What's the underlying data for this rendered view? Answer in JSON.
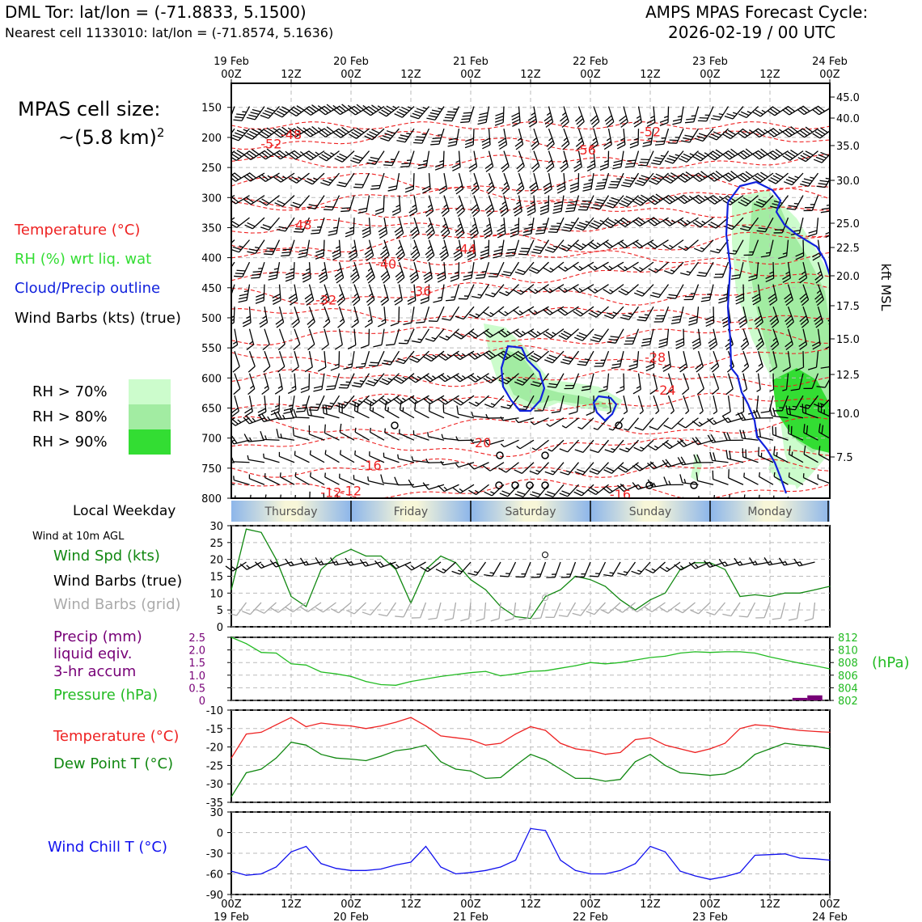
{
  "header": {
    "station": "DML Tor: lat/lon = (-71.8833, 5.1500)",
    "nearest": "Nearest cell 1133010: lat/lon = (-71.8574, 5.1636)",
    "cycle_title": "AMPS MPAS Forecast Cycle:",
    "cycle_time": "2026-02-19 / 00 UTC"
  },
  "cell_size": {
    "label": "MPAS cell size:",
    "value": "~(5.8 km)",
    "sup": "2"
  },
  "legend": {
    "temperature": "Temperature (°C)",
    "rh": "RH (%) wrt liq. wat",
    "cloud": "Cloud/Precip outline",
    "wind": "Wind Barbs (kts) (true)",
    "rh70": "RH > 70%",
    "rh80": "RH > 80%",
    "rh90": "RH > 90%",
    "rh_colors": [
      "#ccfccc",
      "#a2eca2",
      "#33dd33"
    ]
  },
  "time_axis": {
    "ticks": [
      "00Z",
      "12Z",
      "00Z",
      "12Z",
      "00Z",
      "12Z",
      "00Z",
      "12Z",
      "00Z",
      "12Z",
      "00Z"
    ],
    "dates": [
      "19 Feb",
      "20 Feb",
      "21 Feb",
      "22 Feb",
      "23 Feb",
      "24 Feb"
    ]
  },
  "weekday": {
    "label": "Local Weekday",
    "days": [
      "Thursday",
      "Friday",
      "Saturday",
      "Sunday",
      "Monday"
    ]
  },
  "panel_labels": {
    "wind_title": "Wind at 10m AGL",
    "wind_spd": "Wind Spd (kts)",
    "wind_barbs_true": "Wind Barbs (true)",
    "wind_barbs_grid": "Wind Barbs (grid)",
    "precip1": "Precip (mm)",
    "precip2": "liquid eqiv.",
    "precip3": "3-hr accum",
    "pressure": "Pressure (hPa)",
    "pressure_unit": "(hPa)",
    "temp": "Temperature (°C)",
    "dew": "Dew Point T (°C)",
    "chill": "Wind Chill T (°C)"
  },
  "colors": {
    "temp": "#ee2222",
    "dew": "#118811",
    "wind": "#118811",
    "pressure": "#22bb22",
    "precip": "#770077",
    "chill": "#1111ee",
    "cloud": "#1122dd",
    "grid_barb": "#aaaaaa"
  },
  "chart_data": [
    {
      "type": "heatmap",
      "name": "cross-section",
      "y_left_ticks": [
        "150",
        "200",
        "250",
        "300",
        "350",
        "400",
        "450",
        "500",
        "550",
        "600",
        "650",
        "700",
        "750",
        "800"
      ],
      "y_right_ticks": [
        "45.0",
        "40.0",
        "35.0",
        "30.0",
        "25.0",
        "22.5",
        "20.0",
        "17.5",
        "15.0",
        "12.5",
        "10.0",
        "7.5"
      ],
      "y_right_label": "kft MSL",
      "temp_labels": [
        {
          "text": "-52",
          "h": 8,
          "p": 210
        },
        {
          "text": "-48",
          "h": 12,
          "p": 195
        },
        {
          "text": "-48",
          "h": 14,
          "p": 345
        },
        {
          "text": "-40",
          "h": 31,
          "p": 410
        },
        {
          "text": "-44",
          "h": 47,
          "p": 385
        },
        {
          "text": "-32",
          "h": 19,
          "p": 470
        },
        {
          "text": "-36",
          "h": 38,
          "p": 455
        },
        {
          "text": "-56",
          "h": 71,
          "p": 220
        },
        {
          "text": "-52",
          "h": 84,
          "p": 190
        },
        {
          "text": "-28",
          "h": 85,
          "p": 565
        },
        {
          "text": "-24",
          "h": 87,
          "p": 620
        },
        {
          "text": "-20",
          "h": 50,
          "p": 707
        },
        {
          "text": "-16",
          "h": 28,
          "p": 745
        },
        {
          "text": "-12",
          "h": 24,
          "p": 787
        },
        {
          "text": "-12",
          "h": 20,
          "p": 790
        },
        {
          "text": "-16",
          "h": 78,
          "p": 793
        }
      ]
    },
    {
      "type": "line",
      "name": "wind-speed",
      "ylim": [
        0,
        30
      ],
      "yticks": [
        "0",
        "5",
        "10",
        "15",
        "20",
        "25",
        "30"
      ],
      "x_hours": [
        0,
        3,
        6,
        9,
        12,
        15,
        18,
        21,
        24,
        27,
        30,
        33,
        36,
        39,
        42,
        45,
        48,
        51,
        54,
        57,
        60,
        63,
        66,
        69,
        72,
        75,
        78,
        81,
        84,
        87,
        90,
        93,
        96,
        99,
        102,
        105,
        108,
        111,
        114,
        117,
        120
      ],
      "series": [
        {
          "values": [
            11,
            29,
            28,
            20,
            9,
            6,
            17,
            21,
            23,
            21,
            21,
            17,
            7,
            17,
            21,
            19,
            14,
            11,
            6,
            3,
            2.5,
            9,
            11,
            15,
            14,
            12,
            8,
            5,
            8,
            10,
            17,
            19,
            19,
            17,
            9,
            9.5,
            9,
            10,
            10,
            11,
            12
          ]
        }
      ]
    },
    {
      "type": "line",
      "name": "pressure",
      "y2lim": [
        802,
        812
      ],
      "y2ticks": [
        "802",
        "804",
        "806",
        "808",
        "810",
        "812"
      ],
      "ylim": [
        0,
        2.5
      ],
      "yticks": [
        "0",
        "0.5",
        "1.0",
        "1.5",
        "2.0",
        "2.5"
      ],
      "x_hours": [
        0,
        3,
        6,
        9,
        12,
        15,
        18,
        21,
        24,
        27,
        30,
        33,
        36,
        39,
        42,
        45,
        48,
        51,
        54,
        57,
        60,
        63,
        66,
        69,
        72,
        75,
        78,
        81,
        84,
        87,
        90,
        93,
        96,
        99,
        102,
        105,
        108,
        111,
        114,
        117,
        120
      ],
      "series": [
        {
          "name": "Pressure",
          "values": [
            812,
            811,
            809.6,
            809.5,
            807.8,
            807.6,
            806.5,
            806.2,
            805.8,
            805,
            804.5,
            804.4,
            805,
            805.4,
            805.8,
            806.1,
            806.4,
            806.6,
            805.9,
            806.2,
            806.6,
            806.7,
            807.1,
            807.5,
            808,
            807.8,
            808,
            808.4,
            808.8,
            809,
            809.5,
            809.7,
            809.6,
            809.7,
            809.7,
            809.5,
            808.9,
            808.4,
            807.9,
            807.5,
            807
          ]
        }
      ],
      "precip": [
        {
          "h": 114,
          "mm": 0.1
        },
        {
          "h": 117,
          "mm": 0.2
        }
      ]
    },
    {
      "type": "line",
      "name": "temperature",
      "ylim": [
        -35,
        -10
      ],
      "yticks": [
        "-10",
        "-15",
        "-20",
        "-25",
        "-30",
        "-35"
      ],
      "x_hours": [
        0,
        3,
        6,
        9,
        12,
        15,
        18,
        21,
        24,
        27,
        30,
        33,
        36,
        39,
        42,
        45,
        48,
        51,
        54,
        57,
        60,
        63,
        66,
        69,
        72,
        75,
        78,
        81,
        84,
        87,
        90,
        93,
        96,
        99,
        102,
        105,
        108,
        111,
        114,
        117,
        120
      ],
      "series": [
        {
          "name": "Temperature",
          "values": [
            -23,
            -16.5,
            -16,
            -14,
            -12,
            -14.5,
            -13.5,
            -14,
            -14.3,
            -15,
            -14.3,
            -13.3,
            -12,
            -14.3,
            -17,
            -17.5,
            -18,
            -19.5,
            -19,
            -16.5,
            -14.5,
            -15.5,
            -19,
            -20.5,
            -21,
            -22,
            -21.5,
            -18,
            -17.5,
            -19.5,
            -20.5,
            -21.5,
            -20.5,
            -19,
            -15,
            -14,
            -14.3,
            -15,
            -15.5,
            -15.8,
            -16
          ]
        },
        {
          "name": "Dew Point",
          "values": [
            -33.5,
            -27,
            -26,
            -23,
            -18.7,
            -19.5,
            -22,
            -23,
            -23.3,
            -23.7,
            -22.5,
            -21,
            -20.5,
            -19.5,
            -24,
            -26,
            -26.5,
            -28.5,
            -28.3,
            -25,
            -22,
            -23.5,
            -26,
            -28.5,
            -28.5,
            -29.3,
            -28.8,
            -24,
            -22,
            -25,
            -27,
            -27.3,
            -27.7,
            -27.3,
            -25.5,
            -22,
            -20.5,
            -19,
            -19.5,
            -19.8,
            -20.5
          ]
        }
      ]
    },
    {
      "type": "line",
      "name": "wind-chill",
      "ylim": [
        -90,
        30
      ],
      "yticks": [
        "30",
        "0",
        "-30",
        "-60",
        "-90"
      ],
      "x_hours": [
        0,
        3,
        6,
        9,
        12,
        15,
        18,
        21,
        24,
        27,
        30,
        33,
        36,
        39,
        42,
        45,
        48,
        51,
        54,
        57,
        60,
        63,
        66,
        69,
        72,
        75,
        78,
        81,
        84,
        87,
        90,
        93,
        96,
        99,
        102,
        105,
        108,
        111,
        114,
        117,
        120
      ],
      "series": [
        {
          "name": "Wind Chill",
          "values": [
            -56,
            -62,
            -60,
            -50,
            -28,
            -20,
            -45,
            -52,
            -55,
            -55,
            -53,
            -47,
            -43,
            -20,
            -50,
            -60,
            -58,
            -55,
            -50,
            -40,
            6,
            3,
            -40,
            -55,
            -60,
            -60,
            -55,
            -45,
            -20,
            -28,
            -56,
            -63,
            -68,
            -64,
            -58,
            -33,
            -32,
            -31,
            -37,
            -38,
            -40
          ]
        }
      ]
    }
  ]
}
